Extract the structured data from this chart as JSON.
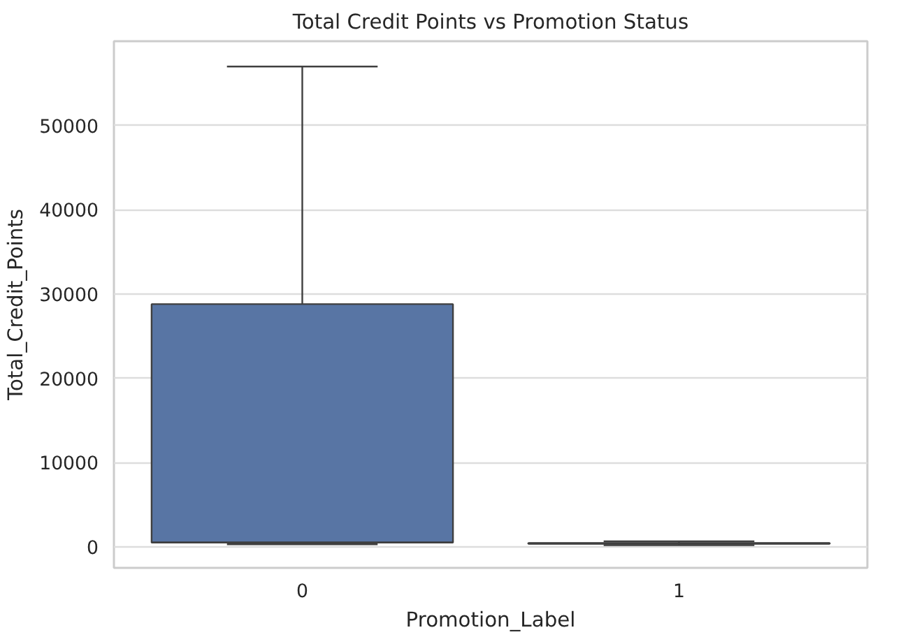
{
  "chart_data": {
    "type": "box",
    "title": "Total Credit Points vs Promotion Status",
    "xlabel": "Promotion_Label",
    "ylabel": "Total_Credit_Points",
    "categories": [
      "0",
      "1"
    ],
    "series": [
      {
        "color": "#5875a4",
        "boxes": [
          {
            "low": 300,
            "q1": 500,
            "median": 500,
            "q3": 28800,
            "high": 57000
          },
          {
            "low": 200,
            "q1": 350,
            "median": 400,
            "q3": 450,
            "high": 650
          }
        ]
      }
    ],
    "ylim": [
      -2500,
      60000
    ],
    "yticks": [
      0,
      10000,
      20000,
      30000,
      40000,
      50000
    ],
    "grid": "y"
  }
}
